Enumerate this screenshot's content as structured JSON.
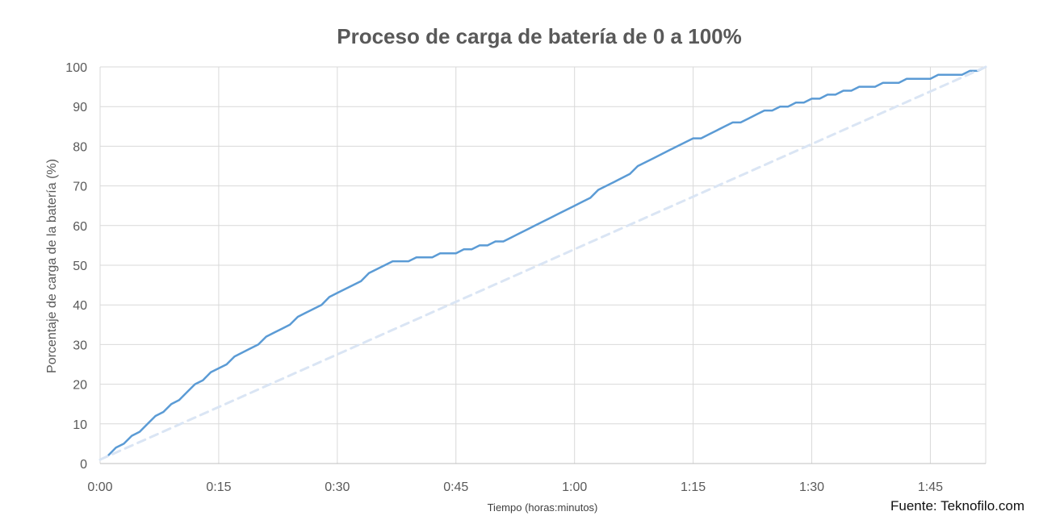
{
  "chart_data": {
    "type": "line",
    "title": "Proceso de carga de batería de 0 a 100%",
    "xlabel": "Tiempo (horas:minutos)",
    "ylabel": "Porcentaje de carga de la batería (%)",
    "x_tick_labels": [
      "0:00",
      "0:15",
      "0:30",
      "0:45",
      "1:00",
      "1:15",
      "1:30",
      "1:45"
    ],
    "y_ticks": [
      0,
      10,
      20,
      30,
      40,
      50,
      60,
      70,
      80,
      90,
      100
    ],
    "xlim": [
      0,
      112
    ],
    "ylim": [
      0,
      100
    ],
    "grid": true,
    "series": [
      {
        "style": "solid",
        "color": "#5B9BD5",
        "x": [
          1,
          2,
          3,
          4,
          5,
          6,
          7,
          8,
          9,
          10,
          11,
          12,
          13,
          14,
          15,
          16,
          17,
          18,
          19,
          20,
          21,
          22,
          23,
          24,
          25,
          26,
          27,
          28,
          29,
          30,
          31,
          32,
          33,
          34,
          35,
          36,
          37,
          38,
          39,
          40,
          41,
          42,
          43,
          44,
          45,
          46,
          47,
          48,
          49,
          50,
          51,
          52,
          53,
          54,
          55,
          56,
          57,
          58,
          59,
          60,
          61,
          62,
          63,
          64,
          65,
          66,
          67,
          68,
          69,
          70,
          71,
          72,
          73,
          74,
          75,
          76,
          77,
          78,
          79,
          80,
          81,
          82,
          83,
          84,
          85,
          86,
          87,
          88,
          89,
          90,
          91,
          92,
          93,
          94,
          95,
          96,
          97,
          98,
          99,
          100,
          101,
          102,
          103,
          104,
          105,
          106,
          107,
          108,
          109,
          110,
          111,
          112
        ],
        "y": [
          2,
          4,
          5,
          7,
          8,
          10,
          12,
          13,
          15,
          16,
          18,
          20,
          21,
          23,
          24,
          25,
          27,
          28,
          29,
          30,
          32,
          33,
          34,
          35,
          37,
          38,
          39,
          40,
          42,
          43,
          44,
          45,
          46,
          48,
          49,
          50,
          51,
          51,
          51,
          52,
          52,
          52,
          53,
          53,
          53,
          54,
          54,
          55,
          55,
          56,
          56,
          57,
          58,
          59,
          60,
          61,
          62,
          63,
          64,
          65,
          66,
          67,
          69,
          70,
          71,
          72,
          73,
          75,
          76,
          77,
          78,
          79,
          80,
          81,
          82,
          82,
          83,
          84,
          85,
          86,
          86,
          87,
          88,
          89,
          89,
          90,
          90,
          91,
          91,
          92,
          92,
          93,
          93,
          94,
          94,
          95,
          95,
          95,
          96,
          96,
          96,
          97,
          97,
          97,
          97,
          98,
          98,
          98,
          98,
          99,
          99,
          100
        ]
      },
      {
        "style": "dashed",
        "color": "#DAE5F4",
        "x": [
          0,
          112
        ],
        "y": [
          1,
          100
        ]
      }
    ]
  },
  "source_text": "Fuente: Teknofilo.com"
}
